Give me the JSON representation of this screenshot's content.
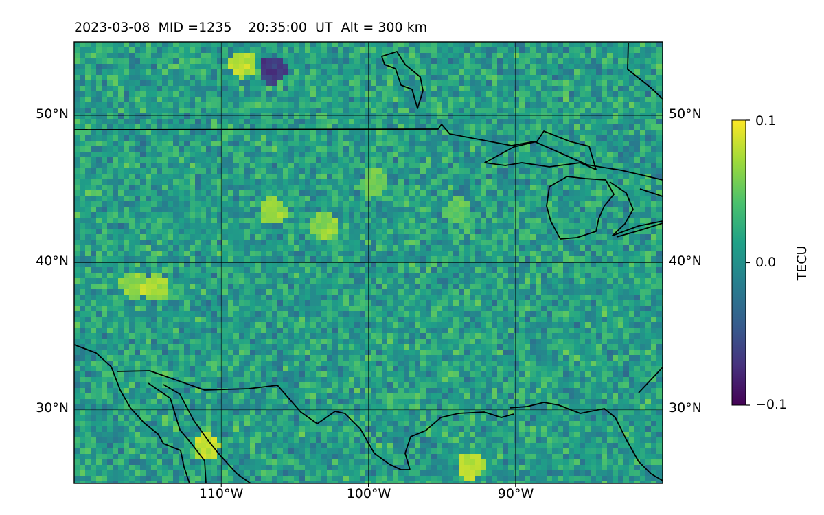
{
  "title": "2023-03-08  MID =1235    20:35:00  UT  Alt = 300 km",
  "colors": {
    "colormap": "viridis",
    "coastline": "#000000",
    "gridline": "#000000"
  },
  "chart_data": {
    "type": "heatmap",
    "title": "2023-03-08  MID =1235    20:35:00  UT  Alt = 300 km",
    "date": "2023-03-08",
    "mid": "1235",
    "time_ut": "20:35:00",
    "altitude_km": 300,
    "projection": "PlateCarree",
    "map_extent": {
      "lon": [
        -120,
        -80
      ],
      "lat": [
        25,
        55
      ]
    },
    "grid": true,
    "lat_ticks": [
      {
        "value": 50,
        "label": "50°N"
      },
      {
        "value": 40,
        "label": "40°N"
      },
      {
        "value": 30,
        "label": "30°N"
      }
    ],
    "lon_ticks": [
      {
        "value": -110,
        "label": "110°W"
      },
      {
        "value": -100,
        "label": "100°W"
      },
      {
        "value": -90,
        "label": "90°W"
      }
    ],
    "colorbar": {
      "label": "TECU",
      "cmap": "viridis",
      "range": [
        -0.1,
        0.1
      ],
      "ticks": [
        {
          "value": 0.1,
          "label": "0.1"
        },
        {
          "value": 0.0,
          "label": "0.0"
        },
        {
          "value": -0.1,
          "label": "−0.1"
        }
      ]
    },
    "field_description": "Detrended total electron content, mostly near 0.0 to +0.03 TECU with scattered positive (yellow) and negative (purple) cells.",
    "notable_features": [
      {
        "lon": -108.5,
        "lat": 53.5,
        "value": 0.1
      },
      {
        "lon": -106.5,
        "lat": 53.0,
        "value": -0.09
      },
      {
        "lon": -106.5,
        "lat": 43.5,
        "value": 0.09
      },
      {
        "lon": -103.0,
        "lat": 42.5,
        "value": 0.08
      },
      {
        "lon": -116.0,
        "lat": 38.5,
        "value": 0.08
      },
      {
        "lon": -114.5,
        "lat": 38.3,
        "value": 0.09
      },
      {
        "lon": -111.0,
        "lat": 27.5,
        "value": 0.1
      },
      {
        "lon": -93.0,
        "lat": 26.2,
        "value": 0.1
      },
      {
        "lon": -99.5,
        "lat": 45.5,
        "value": 0.07
      },
      {
        "lon": -94.0,
        "lat": 43.5,
        "value": 0.06
      }
    ]
  }
}
